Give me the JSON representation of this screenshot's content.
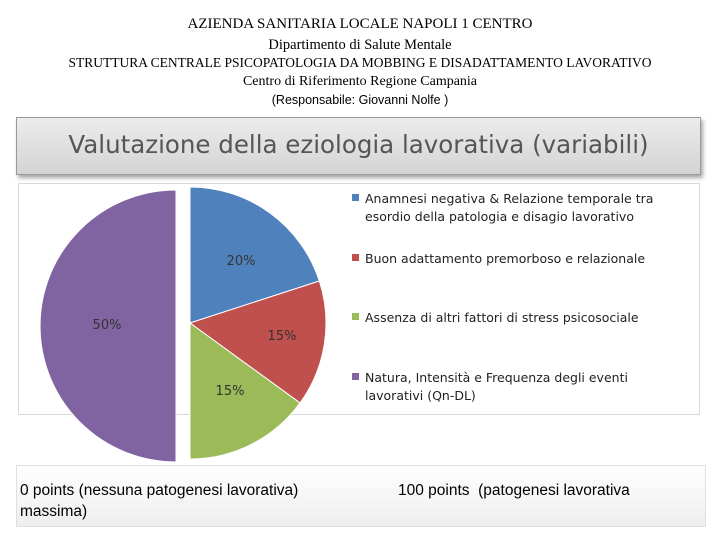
{
  "header": {
    "line1": "AZIENDA SANITARIA LOCALE NAPOLI 1 CENTRO",
    "line2": "Dipartimento di Salute Mentale",
    "line3": "STRUTTURA CENTRALE PSICOPATOLOGIA DA MOBBING E  DISADATTAMENTO LAVORATIVO",
    "line4": "Centro di Riferimento Regione Campania",
    "line5": "(Responsabile: Giovanni Nolfe )"
  },
  "banner": {
    "title": "Valutazione della eziologia lavorativa (variabili)"
  },
  "chart_data": {
    "type": "pie",
    "title": "",
    "start_angle_deg": 0,
    "direction": "clockwise",
    "slices": [
      {
        "label": "Anamnesi negativa & Relazione temporale tra esordio della patologia e disagio lavorativo",
        "value": 20,
        "display": "20%",
        "color": "#4f81bd"
      },
      {
        "label": "Buon adattamento premorboso e relazionale",
        "value": 15,
        "display": "15%",
        "color": "#c0504d"
      },
      {
        "label": "Assenza di altri fattori di stress psicosociale",
        "value": 15,
        "display": "15%",
        "color": "#9bbb59"
      },
      {
        "label": "Natura, Intensità e Frequenza degli eventi lavorativi (Qn-DL)",
        "value": 50,
        "display": "50%",
        "color": "#8064a2"
      }
    ],
    "legend_position": "right",
    "exploded": true
  },
  "footer": {
    "left": "0 points (nessuna patogenesi lavorativa) massima)",
    "right": "100 points  (patogenesi lavorativa"
  }
}
